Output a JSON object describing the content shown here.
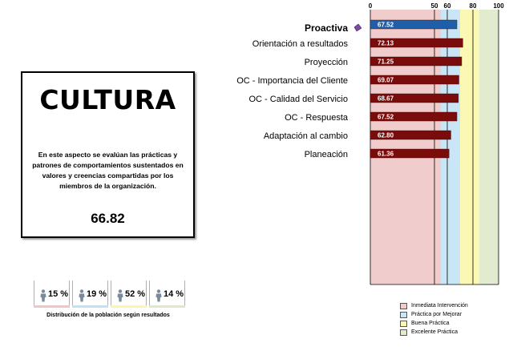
{
  "card": {
    "title": "CULTURA",
    "description": "En este aspecto se evalúan las prácticas y patrones de comportamientos  sustentados en valores y creencias compartidas por los miembros de la organización.",
    "score": "66.82"
  },
  "distribution": {
    "caption": "Distribución de la población  según resultados",
    "items": [
      {
        "percent": "15 %",
        "color": "#f2c4c4"
      },
      {
        "percent": "19 %",
        "color": "#bfe3f5"
      },
      {
        "percent": "52 %",
        "color": "#fbf7a8"
      },
      {
        "percent": "14 %",
        "color": "#dfe8c8"
      }
    ]
  },
  "chart_data": {
    "type": "bar",
    "orientation": "horizontal",
    "categories": [
      "Proactiva",
      "Orientación a resultados",
      "Proyección",
      "OC - Importancia del Cliente",
      "OC - Calidad del Servicio",
      "OC - Respuesta",
      "Adaptación al cambio",
      "Planeación"
    ],
    "values": [
      67.52,
      72.13,
      71.25,
      69.07,
      68.67,
      67.52,
      62.8,
      61.36
    ],
    "value_labels": [
      "67.52",
      "72.13",
      "71.25",
      "69.07",
      "68.67",
      "67.52",
      "62.80",
      "61.36"
    ],
    "bar_colors": [
      "#1f5ea8",
      "#7a0c0c",
      "#7a0c0c",
      "#7a0c0c",
      "#7a0c0c",
      "#7a0c0c",
      "#7a0c0c",
      "#7a0c0c"
    ],
    "xlim": [
      0,
      100
    ],
    "xticks": [
      "0",
      "50",
      "60",
      "80",
      "100"
    ],
    "xtick_values": [
      0,
      50,
      60,
      80,
      100
    ],
    "bands": [
      {
        "from": 0,
        "to": 55,
        "color": "#f0cccc",
        "label": "Inmediata Intervención"
      },
      {
        "from": 55,
        "to": 70,
        "color": "#c9e6f6",
        "label": "Práctica por Mejorar"
      },
      {
        "from": 70,
        "to": 85,
        "color": "#fbf8b4",
        "label": "Buena Práctica"
      },
      {
        "from": 85,
        "to": 100,
        "color": "#e2ead0",
        "label": "Excelente Práctica"
      }
    ],
    "highlight_marker_color": "#7b4aa6",
    "legend_position": "bottom-right"
  }
}
